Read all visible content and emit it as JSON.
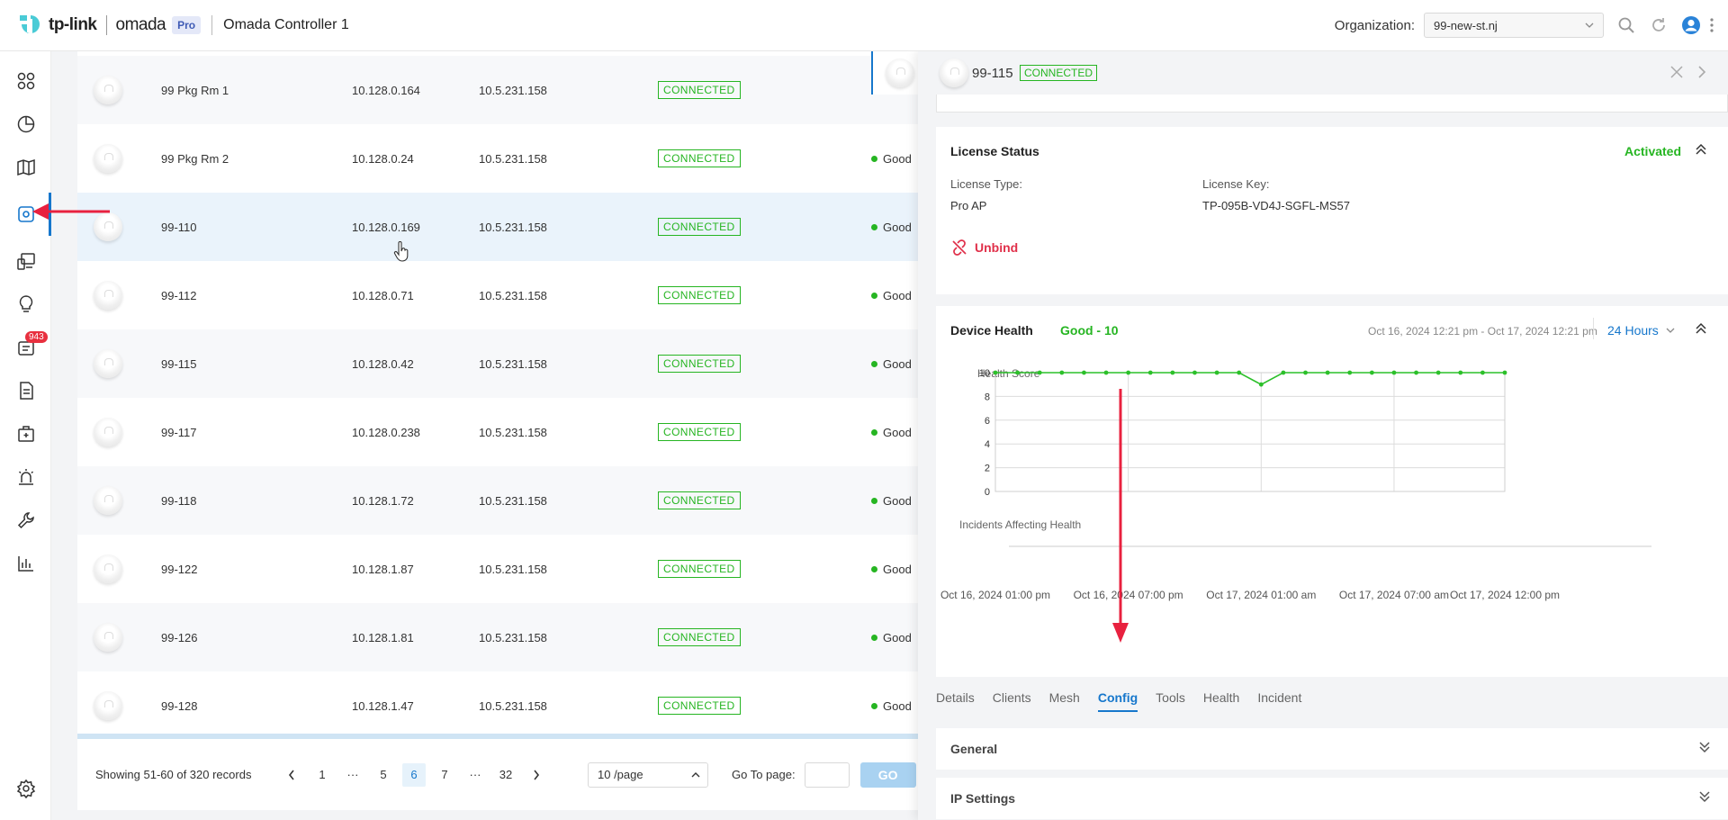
{
  "header": {
    "brand": "tp-link",
    "product": "omada",
    "pro_badge": "Pro",
    "controller": "Omada Controller 1",
    "org_label": "Organization:",
    "org_value": "99-new-st.nj"
  },
  "sidebar": {
    "items": [
      {
        "icon": "dashboard-icon"
      },
      {
        "icon": "statistics-icon"
      },
      {
        "icon": "map-icon"
      },
      {
        "icon": "devices-icon",
        "active": true
      },
      {
        "icon": "clients-icon"
      },
      {
        "icon": "insights-icon"
      },
      {
        "icon": "logs-icon",
        "badge": "943"
      },
      {
        "icon": "reports-icon"
      },
      {
        "icon": "toolbox-icon"
      },
      {
        "icon": "alerts-icon"
      },
      {
        "icon": "maintenance-icon"
      },
      {
        "icon": "analytics-icon"
      }
    ],
    "settings_icon": "settings-icon"
  },
  "devices": [
    {
      "name": "99 Pkg Rm 1",
      "ip": "10.128.0.164",
      "public_ip": "10.5.231.158",
      "status": "CONNECTED",
      "health": ""
    },
    {
      "name": "99 Pkg Rm 2",
      "ip": "10.128.0.24",
      "public_ip": "10.5.231.158",
      "status": "CONNECTED",
      "health": "Good"
    },
    {
      "name": "99-110",
      "ip": "10.128.0.169",
      "public_ip": "10.5.231.158",
      "status": "CONNECTED",
      "health": "Good"
    },
    {
      "name": "99-112",
      "ip": "10.128.0.71",
      "public_ip": "10.5.231.158",
      "status": "CONNECTED",
      "health": "Good"
    },
    {
      "name": "99-115",
      "ip": "10.128.0.42",
      "public_ip": "10.5.231.158",
      "status": "CONNECTED",
      "health": "Good"
    },
    {
      "name": "99-117",
      "ip": "10.128.0.238",
      "public_ip": "10.5.231.158",
      "status": "CONNECTED",
      "health": "Good"
    },
    {
      "name": "99-118",
      "ip": "10.128.1.72",
      "public_ip": "10.5.231.158",
      "status": "CONNECTED",
      "health": "Good"
    },
    {
      "name": "99-122",
      "ip": "10.128.1.87",
      "public_ip": "10.5.231.158",
      "status": "CONNECTED",
      "health": "Good"
    },
    {
      "name": "99-126",
      "ip": "10.128.1.81",
      "public_ip": "10.5.231.158",
      "status": "CONNECTED",
      "health": "Good"
    },
    {
      "name": "99-128",
      "ip": "10.128.1.47",
      "public_ip": "10.5.231.158",
      "status": "CONNECTED",
      "health": "Good"
    }
  ],
  "pagination": {
    "summary": "Showing 51-60 of 320 records",
    "pages": [
      "1",
      "···",
      "5",
      "6",
      "7",
      "···",
      "32"
    ],
    "current": "6",
    "page_size": "10 /page",
    "goto_label": "Go To page:",
    "go": "GO"
  },
  "panel": {
    "device_name": "99-115",
    "status": "CONNECTED",
    "license": {
      "title": "License Status",
      "state": "Activated",
      "type_label": "License Type:",
      "type_value": "Pro AP",
      "key_label": "License Key:",
      "key_value": "TP-095B-VD4J-SGFL-MS57",
      "unbind": "Unbind"
    },
    "health": {
      "title": "Device Health",
      "value": "Good - 10",
      "range": "Oct 16, 2024 12:21 pm - Oct 17, 2024 12:21 pm",
      "period": "24 Hours"
    },
    "tabs": [
      "Details",
      "Clients",
      "Mesh",
      "Config",
      "Tools",
      "Health",
      "Incident"
    ],
    "active_tab": "Config",
    "sections": [
      "General",
      "IP Settings"
    ]
  },
  "chart_data": {
    "type": "line",
    "ylabel": "Health Score",
    "ylim": [
      0,
      10
    ],
    "yticks": [
      0,
      2,
      4,
      6,
      8,
      10
    ],
    "x_tick_labels": [
      "Oct 16, 2024 01:00 pm",
      "Oct 16, 2024 07:00 pm",
      "Oct 17, 2024 01:00 am",
      "Oct 17, 2024 07:00 am",
      "Oct 17, 2024 12:00 pm"
    ],
    "x_tick_hours": [
      0,
      6,
      12,
      18,
      23
    ],
    "series": [
      {
        "values": [
          10,
          10,
          10,
          10,
          10,
          10,
          10,
          10,
          10,
          10,
          10,
          10,
          9,
          10,
          10,
          10,
          10,
          10,
          10,
          10,
          10,
          10,
          10,
          10
        ]
      }
    ],
    "incidents_label": "Incidents Affecting Health",
    "grid": true,
    "color": "#2cc02a"
  },
  "colors": {
    "accent": "#1677cc",
    "success": "#26b522",
    "danger": "#e0304a",
    "annotation": "#e8213f"
  }
}
